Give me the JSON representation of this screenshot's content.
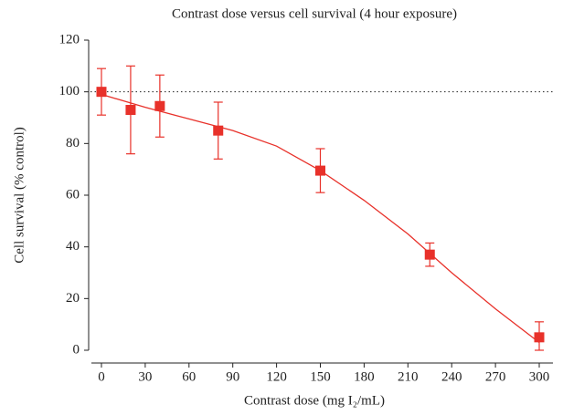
{
  "chart_data": {
    "type": "scatter",
    "title": "Contrast dose versus cell survival (4 hour exposure)",
    "x_label": "Contrast dose (mg I₂/mL)",
    "y_label": "Cell survival (% control)",
    "xlim": [
      0,
      300
    ],
    "ylim": [
      0,
      120
    ],
    "xticks": [
      0,
      30,
      60,
      90,
      120,
      150,
      180,
      210,
      240,
      270,
      300
    ],
    "yticks": [
      0,
      20,
      40,
      60,
      80,
      100,
      120
    ],
    "reference_line": 100,
    "color": "#e8312a",
    "series": [
      {
        "x": [
          0,
          20,
          40,
          80,
          150,
          225,
          300
        ],
        "values": [
          100,
          93,
          94.5,
          85,
          69.5,
          37,
          5
        ],
        "errors": [
          9,
          17,
          12,
          11,
          8.5,
          4.5,
          6
        ]
      }
    ],
    "fit": {
      "x": [
        0,
        30,
        60,
        90,
        120,
        150,
        180,
        210,
        240,
        270,
        300
      ],
      "values": [
        99,
        94,
        89.5,
        85,
        79,
        69.5,
        58,
        45,
        30,
        16,
        3
      ]
    }
  }
}
